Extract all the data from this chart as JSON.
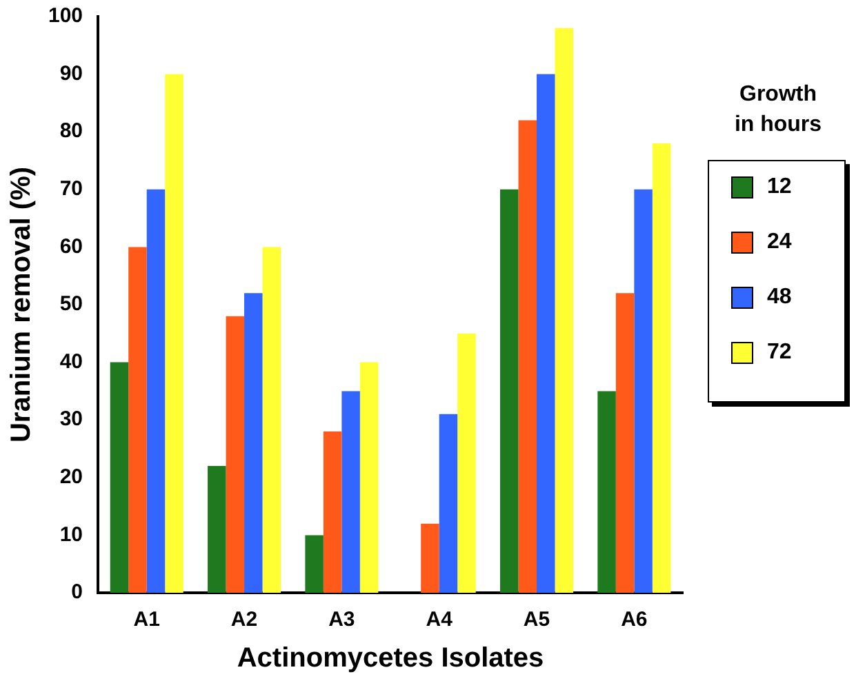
{
  "chart_data": {
    "type": "bar",
    "xlabel": "Actinomycetes Isolates",
    "ylabel": "Uranium removal (%)",
    "legend_title": "Growth in hours",
    "categories": [
      "A1",
      "A2",
      "A3",
      "A4",
      "A5",
      "A6"
    ],
    "series": [
      {
        "name": "12",
        "color": "#1f7a1f",
        "values": [
          40,
          22,
          10,
          0,
          70,
          35
        ]
      },
      {
        "name": "24",
        "color": "#ff5a1a",
        "values": [
          60,
          48,
          28,
          12,
          82,
          52
        ]
      },
      {
        "name": "48",
        "color": "#3366ff",
        "values": [
          70,
          52,
          35,
          31,
          90,
          70
        ]
      },
      {
        "name": "72",
        "color": "#ffff33",
        "values": [
          90,
          60,
          40,
          45,
          98,
          78
        ]
      }
    ],
    "ylim": [
      0,
      100
    ],
    "yticks": [
      0,
      10,
      20,
      30,
      40,
      50,
      60,
      70,
      80,
      90,
      100
    ],
    "grid": false,
    "legend": "right"
  }
}
